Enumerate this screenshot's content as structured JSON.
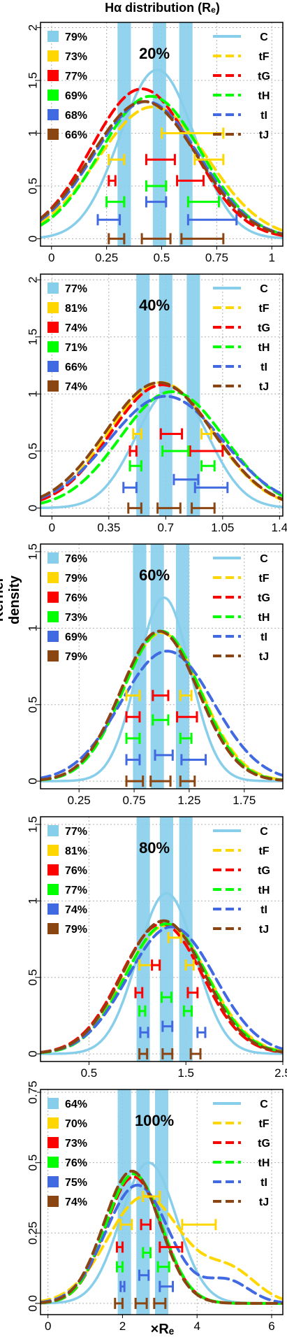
{
  "figure": {
    "title": "Hα distribution (Rₑ)",
    "ylabel": "Kernel density",
    "xlabel": "×Rₑ"
  },
  "legend_right": [
    {
      "label": "C",
      "color": "#87CEEB",
      "dash": "solid"
    },
    {
      "label": "tF",
      "color": "#FFD700",
      "dash": "dashed"
    },
    {
      "label": "tG",
      "color": "#FF0000",
      "dash": "dashed"
    },
    {
      "label": "tH",
      "color": "#00FF00",
      "dash": "dashed"
    },
    {
      "label": "tI",
      "color": "#4169E1",
      "dash": "dashed"
    },
    {
      "label": "tJ",
      "color": "#8B4513",
      "dash": "dashed"
    }
  ],
  "chart_data": [
    {
      "type": "line",
      "panel_label": "20%",
      "xlim": [
        -0.05,
        1.05
      ],
      "ylim": [
        -0.07,
        2.05
      ],
      "xticks": [
        0,
        0.25,
        0.5,
        0.75,
        1
      ],
      "xtick_labels": [
        "0",
        "0.25",
        "0.5",
        "0.75",
        "1"
      ],
      "yticks": [
        0,
        0.5,
        1,
        1.5,
        2
      ],
      "ytick_labels": [
        "0",
        "0.5",
        "1",
        "1.5",
        "2"
      ],
      "legend_percent": [
        "79%",
        "73%",
        "77%",
        "69%",
        "68%",
        "66%"
      ],
      "bands": [
        0.33,
        0.49,
        0.61
      ],
      "curves": [
        {
          "name": "C",
          "mu": 0.48,
          "sigma": 0.17,
          "peak": 1.6
        },
        {
          "name": "tF",
          "mu": 0.46,
          "sigma": 0.25,
          "peak": 1.25
        },
        {
          "name": "tG",
          "mu": 0.41,
          "sigma": 0.23,
          "peak": 1.42
        },
        {
          "name": "tH",
          "mu": 0.45,
          "sigma": 0.23,
          "peak": 1.35
        },
        {
          "name": "tI",
          "mu": 0.43,
          "sigma": 0.24,
          "peak": 1.3
        },
        {
          "name": "tJ",
          "mu": 0.42,
          "sigma": 0.24,
          "peak": 1.3
        }
      ],
      "intervals": [
        {
          "name": "tF",
          "y": 1.0,
          "lo": 0.5,
          "hi": 0.78
        },
        {
          "name": "tF",
          "y": 0.75,
          "lo": 0.26,
          "hi": 0.33
        },
        {
          "name": "tF",
          "y": 0.75,
          "lo": 0.65,
          "hi": 0.78
        },
        {
          "name": "tG",
          "y": 0.75,
          "lo": 0.43,
          "hi": 0.56
        },
        {
          "name": "tG",
          "y": 0.55,
          "lo": 0.26,
          "hi": 0.29
        },
        {
          "name": "tG",
          "y": 0.55,
          "lo": 0.57,
          "hi": 0.69
        },
        {
          "name": "tH",
          "y": 0.5,
          "lo": 0.43,
          "hi": 0.52
        },
        {
          "name": "tH",
          "y": 0.35,
          "lo": 0.25,
          "hi": 0.33
        },
        {
          "name": "tH",
          "y": 0.35,
          "lo": 0.62,
          "hi": 0.76
        },
        {
          "name": "tI",
          "y": 0.35,
          "lo": 0.43,
          "hi": 0.52
        },
        {
          "name": "tI",
          "y": 0.18,
          "lo": 0.21,
          "hi": 0.31
        },
        {
          "name": "tI",
          "y": 0.18,
          "lo": 0.62,
          "hi": 0.84
        },
        {
          "name": "tJ",
          "y": 0.0,
          "lo": 0.26,
          "hi": 0.33
        },
        {
          "name": "tJ",
          "y": 0.0,
          "lo": 0.41,
          "hi": 0.54
        },
        {
          "name": "tJ",
          "y": 0.0,
          "lo": 0.59,
          "hi": 0.78
        }
      ]
    },
    {
      "type": "line",
      "panel_label": "40%",
      "xlim": [
        -0.07,
        1.42
      ],
      "ylim": [
        -0.07,
        2.05
      ],
      "xticks": [
        0,
        0.35,
        0.7,
        1.05,
        1.4
      ],
      "xtick_labels": [
        "0",
        "0.35",
        "0.7",
        "1.05",
        "1.4"
      ],
      "yticks": [
        0,
        0.5,
        1,
        1.5,
        2
      ],
      "ytick_labels": [
        "0",
        "0.5",
        "1",
        "1.5",
        "2"
      ],
      "legend_percent": [
        "77%",
        "81%",
        "74%",
        "71%",
        "66%",
        "74%"
      ],
      "bands": [
        0.56,
        0.7,
        0.87
      ],
      "curves": [
        {
          "name": "C",
          "mu": 0.74,
          "sigma": 0.22,
          "peak": 1.05
        },
        {
          "name": "tF",
          "mu": 0.67,
          "sigma": 0.32,
          "peak": 1.1
        },
        {
          "name": "tG",
          "mu": 0.68,
          "sigma": 0.32,
          "peak": 1.08
        },
        {
          "name": "tH",
          "mu": 0.74,
          "sigma": 0.32,
          "peak": 1.02
        },
        {
          "name": "tI",
          "mu": 0.7,
          "sigma": 0.35,
          "peak": 0.98
        },
        {
          "name": "tJ",
          "mu": 0.66,
          "sigma": 0.33,
          "peak": 1.1
        }
      ],
      "intervals": [
        {
          "name": "tF",
          "y": 0.65,
          "lo": 0.5,
          "hi": 0.55
        },
        {
          "name": "tF",
          "y": 0.65,
          "lo": 0.92,
          "hi": 0.98
        },
        {
          "name": "tG",
          "y": 0.65,
          "lo": 0.67,
          "hi": 0.8
        },
        {
          "name": "tG",
          "y": 0.5,
          "lo": 0.48,
          "hi": 0.52
        },
        {
          "name": "tG",
          "y": 0.5,
          "lo": 0.85,
          "hi": 1.05
        },
        {
          "name": "tH",
          "y": 0.5,
          "lo": 0.68,
          "hi": 0.84
        },
        {
          "name": "tH",
          "y": 0.37,
          "lo": 0.48,
          "hi": 0.55
        },
        {
          "name": "tH",
          "y": 0.37,
          "lo": 0.92,
          "hi": 1.0
        },
        {
          "name": "tI",
          "y": 0.25,
          "lo": 0.75,
          "hi": 0.9
        },
        {
          "name": "tI",
          "y": 0.18,
          "lo": 0.44,
          "hi": 0.52
        },
        {
          "name": "tI",
          "y": 0.18,
          "lo": 0.88,
          "hi": 1.08
        },
        {
          "name": "tJ",
          "y": 0.0,
          "lo": 0.47,
          "hi": 0.55
        },
        {
          "name": "tJ",
          "y": 0.0,
          "lo": 0.65,
          "hi": 0.79
        },
        {
          "name": "tJ",
          "y": 0.0,
          "lo": 0.86,
          "hi": 1.0
        }
      ]
    },
    {
      "type": "line",
      "panel_label": "60%",
      "xlim": [
        -0.1,
        2.1
      ],
      "ylim": [
        -0.05,
        1.55
      ],
      "xticks": [
        0.25,
        0.75,
        1.25,
        1.75
      ],
      "xtick_labels": [
        "0.25",
        "0.75",
        "1.25",
        "1.75"
      ],
      "yticks": [
        0,
        0.5,
        1,
        1.5
      ],
      "ytick_labels": [
        "0",
        "0.5",
        "1",
        "1.5"
      ],
      "legend_percent": [
        "76%",
        "79%",
        "76%",
        "73%",
        "69%",
        "79%"
      ],
      "bands": [
        0.8,
        0.96,
        1.19
      ],
      "curves": [
        {
          "name": "C",
          "mu": 1.02,
          "sigma": 0.24,
          "peak": 1.2
        },
        {
          "name": "tF",
          "mu": 1.0,
          "sigma": 0.36,
          "peak": 0.97
        },
        {
          "name": "tG",
          "mu": 0.98,
          "sigma": 0.35,
          "peak": 0.98
        },
        {
          "name": "tH",
          "mu": 1.0,
          "sigma": 0.35,
          "peak": 0.98
        },
        {
          "name": "tI",
          "mu": 1.05,
          "sigma": 0.42,
          "peak": 0.85
        },
        {
          "name": "tJ",
          "mu": 0.98,
          "sigma": 0.35,
          "peak": 0.98
        }
      ],
      "intervals": [
        {
          "name": "tF",
          "y": 0.56,
          "lo": 0.68,
          "hi": 0.8
        },
        {
          "name": "tF",
          "y": 0.56,
          "lo": 1.17,
          "hi": 1.27
        },
        {
          "name": "tG",
          "y": 0.56,
          "lo": 0.92,
          "hi": 1.06
        },
        {
          "name": "tG",
          "y": 0.42,
          "lo": 0.68,
          "hi": 0.8
        },
        {
          "name": "tG",
          "y": 0.42,
          "lo": 1.14,
          "hi": 1.32
        },
        {
          "name": "tH",
          "y": 0.4,
          "lo": 0.92,
          "hi": 1.06
        },
        {
          "name": "tH",
          "y": 0.28,
          "lo": 0.68,
          "hi": 0.8
        },
        {
          "name": "tH",
          "y": 0.28,
          "lo": 1.17,
          "hi": 1.27
        },
        {
          "name": "tI",
          "y": 0.17,
          "lo": 0.94,
          "hi": 1.1
        },
        {
          "name": "tI",
          "y": 0.14,
          "lo": 0.68,
          "hi": 0.8
        },
        {
          "name": "tI",
          "y": 0.14,
          "lo": 1.18,
          "hi": 1.4
        },
        {
          "name": "tJ",
          "y": 0.0,
          "lo": 0.68,
          "hi": 0.83
        },
        {
          "name": "tJ",
          "y": 0.0,
          "lo": 0.9,
          "hi": 1.08
        },
        {
          "name": "tJ",
          "y": 0.0,
          "lo": 1.17,
          "hi": 1.3
        }
      ]
    },
    {
      "type": "line",
      "panel_label": "80%",
      "xlim": [
        0.0,
        2.5
      ],
      "ylim": [
        -0.05,
        1.55
      ],
      "xticks": [
        0.5,
        1.5,
        2.5
      ],
      "xtick_labels": [
        "0.5",
        "1.5",
        "2.5"
      ],
      "yticks": [
        0,
        0.5,
        1,
        1.5
      ],
      "ytick_labels": [
        "0",
        "0.5",
        "1",
        "1.5"
      ],
      "legend_percent": [
        "77%",
        "81%",
        "76%",
        "77%",
        "74%",
        "79%"
      ],
      "bands": [
        1.06,
        1.3,
        1.5
      ],
      "curves": [
        {
          "name": "C",
          "mu": 1.3,
          "sigma": 0.3,
          "peak": 1.05
        },
        {
          "name": "tF",
          "mu": 1.3,
          "sigma": 0.43,
          "peak": 0.84
        },
        {
          "name": "tG",
          "mu": 1.25,
          "sigma": 0.42,
          "peak": 0.85
        },
        {
          "name": "tH",
          "mu": 1.3,
          "sigma": 0.42,
          "peak": 0.85
        },
        {
          "name": "tI",
          "mu": 1.35,
          "sigma": 0.45,
          "peak": 0.83
        },
        {
          "name": "tJ",
          "mu": 1.27,
          "sigma": 0.42,
          "peak": 0.87
        }
      ],
      "intervals": [
        {
          "name": "tF",
          "y": 0.76,
          "lo": 1.32,
          "hi": 1.45
        },
        {
          "name": "tF",
          "y": 0.58,
          "lo": 1.02,
          "hi": 1.23
        },
        {
          "name": "tF",
          "y": 0.58,
          "lo": 1.5,
          "hi": 1.58
        },
        {
          "name": "tG",
          "y": 0.58,
          "lo": 1.15,
          "hi": 1.23
        },
        {
          "name": "tG",
          "y": 0.4,
          "lo": 0.98,
          "hi": 1.05
        },
        {
          "name": "tG",
          "y": 0.4,
          "lo": 1.52,
          "hi": 1.62
        },
        {
          "name": "tH",
          "y": 0.37,
          "lo": 1.25,
          "hi": 1.35
        },
        {
          "name": "tH",
          "y": 0.28,
          "lo": 1.02,
          "hi": 1.08
        },
        {
          "name": "tH",
          "y": 0.28,
          "lo": 1.48,
          "hi": 1.56
        },
        {
          "name": "tI",
          "y": 0.18,
          "lo": 1.26,
          "hi": 1.36
        },
        {
          "name": "tI",
          "y": 0.14,
          "lo": 1.03,
          "hi": 1.11
        },
        {
          "name": "tI",
          "y": 0.14,
          "lo": 1.62,
          "hi": 1.7
        },
        {
          "name": "tJ",
          "y": 0.0,
          "lo": 1.02,
          "hi": 1.1
        },
        {
          "name": "tJ",
          "y": 0.0,
          "lo": 1.26,
          "hi": 1.36
        },
        {
          "name": "tJ",
          "y": 0.0,
          "lo": 1.55,
          "hi": 1.65
        }
      ]
    },
    {
      "type": "line",
      "panel_label": "100%",
      "xlim": [
        -0.2,
        6.3
      ],
      "ylim": [
        -0.04,
        0.76
      ],
      "xticks": [
        0,
        2,
        4,
        6
      ],
      "xtick_labels": [
        "0",
        "2",
        "4",
        "6"
      ],
      "yticks": [
        0,
        0.25,
        0.5,
        0.75
      ],
      "ytick_labels": [
        "0.0",
        "0.25",
        "0.5",
        "0.75"
      ],
      "legend_percent": [
        "64%",
        "70%",
        "73%",
        "76%",
        "75%",
        "74%"
      ],
      "bands": [
        2.05,
        2.55,
        3.05
      ],
      "curves": [
        {
          "name": "C",
          "mu": 2.7,
          "sigma": 0.75,
          "peak": 0.5
        },
        {
          "name": "tF",
          "mu": 2.6,
          "sigma": 1.0,
          "peak": 0.38,
          "bump": {
            "mu": 4.9,
            "sigma": 0.7,
            "peak": 0.11
          }
        },
        {
          "name": "tG",
          "mu": 2.3,
          "sigma": 0.75,
          "peak": 0.45
        },
        {
          "name": "tH",
          "mu": 2.3,
          "sigma": 0.75,
          "peak": 0.46
        },
        {
          "name": "tI",
          "mu": 2.4,
          "sigma": 0.85,
          "peak": 0.42,
          "bump": {
            "mu": 4.8,
            "sigma": 0.6,
            "peak": 0.08
          }
        },
        {
          "name": "tJ",
          "mu": 2.25,
          "sigma": 0.75,
          "peak": 0.47
        }
      ],
      "intervals": [
        {
          "name": "tF",
          "y": 0.38,
          "lo": 2.55,
          "hi": 3.0
        },
        {
          "name": "tF",
          "y": 0.28,
          "lo": 1.95,
          "hi": 2.25
        },
        {
          "name": "tF",
          "y": 0.28,
          "lo": 3.6,
          "hi": 4.5
        },
        {
          "name": "tG",
          "y": 0.28,
          "lo": 2.5,
          "hi": 2.75
        },
        {
          "name": "tG",
          "y": 0.2,
          "lo": 1.85,
          "hi": 2.0
        },
        {
          "name": "tG",
          "y": 0.2,
          "lo": 3.0,
          "hi": 3.6
        },
        {
          "name": "tH",
          "y": 0.18,
          "lo": 2.55,
          "hi": 2.75
        },
        {
          "name": "tH",
          "y": 0.13,
          "lo": 1.85,
          "hi": 2.0
        },
        {
          "name": "tH",
          "y": 0.13,
          "lo": 2.95,
          "hi": 3.25
        },
        {
          "name": "tI",
          "y": 0.1,
          "lo": 2.45,
          "hi": 2.7
        },
        {
          "name": "tI",
          "y": 0.06,
          "lo": 1.95,
          "hi": 2.05
        },
        {
          "name": "tI",
          "y": 0.06,
          "lo": 3.0,
          "hi": 3.35
        },
        {
          "name": "tJ",
          "y": 0.0,
          "lo": 1.8,
          "hi": 2.0
        },
        {
          "name": "tJ",
          "y": 0.0,
          "lo": 2.35,
          "hi": 2.65
        },
        {
          "name": "tJ",
          "y": 0.0,
          "lo": 2.85,
          "hi": 3.15
        }
      ]
    }
  ]
}
